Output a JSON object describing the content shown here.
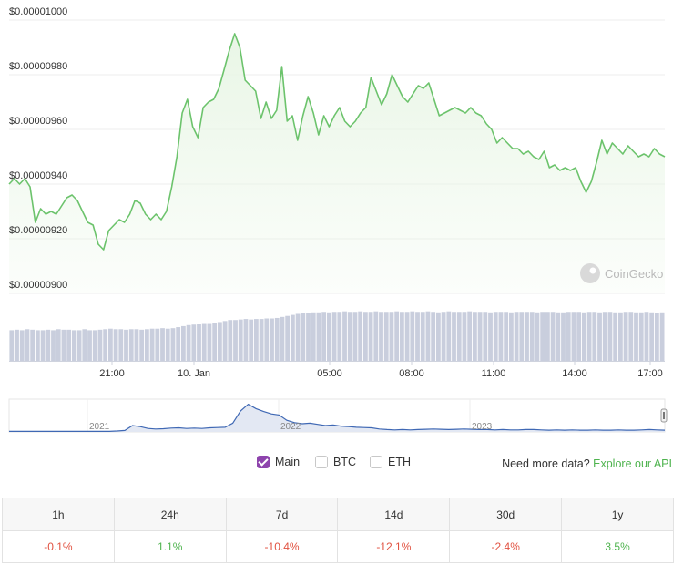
{
  "chart_data": {
    "type": "area",
    "price": {
      "y_ticks": [
        "$0.00001000",
        "$0.00000980",
        "$0.00000960",
        "$0.00000940",
        "$0.00000920",
        "$0.00000900"
      ],
      "ylim": [
        9e-06,
        1e-05
      ],
      "x_ticks": [
        "21:00",
        "10. Jan",
        "05:00",
        "08:00",
        "11:00",
        "14:00",
        "17:00"
      ],
      "values": [
        9.4e-06,
        9.42e-06,
        9.4e-06,
        9.42e-06,
        9.39e-06,
        9.26e-06,
        9.31e-06,
        9.29e-06,
        9.3e-06,
        9.29e-06,
        9.32e-06,
        9.35e-06,
        9.36e-06,
        9.34e-06,
        9.3e-06,
        9.26e-06,
        9.25e-06,
        9.18e-06,
        9.16e-06,
        9.23e-06,
        9.25e-06,
        9.27e-06,
        9.26e-06,
        9.29e-06,
        9.34e-06,
        9.33e-06,
        9.29e-06,
        9.27e-06,
        9.29e-06,
        9.27e-06,
        9.3e-06,
        9.39e-06,
        9.5e-06,
        9.66e-06,
        9.71e-06,
        9.61e-06,
        9.57e-06,
        9.68e-06,
        9.7e-06,
        9.71e-06,
        9.75e-06,
        9.82e-06,
        9.89e-06,
        9.95e-06,
        9.9e-06,
        9.78e-06,
        9.76e-06,
        9.74e-06,
        9.64e-06,
        9.7e-06,
        9.64e-06,
        9.67e-06,
        9.83e-06,
        9.63e-06,
        9.65e-06,
        9.56e-06,
        9.65e-06,
        9.72e-06,
        9.66e-06,
        9.58e-06,
        9.65e-06,
        9.61e-06,
        9.65e-06,
        9.68e-06,
        9.63e-06,
        9.61e-06,
        9.63e-06,
        9.66e-06,
        9.68e-06,
        9.79e-06,
        9.74e-06,
        9.69e-06,
        9.73e-06,
        9.8e-06,
        9.76e-06,
        9.72e-06,
        9.7e-06,
        9.73e-06,
        9.76e-06,
        9.75e-06,
        9.77e-06,
        9.71e-06,
        9.65e-06,
        9.66e-06,
        9.67e-06,
        9.68e-06,
        9.67e-06,
        9.66e-06,
        9.68e-06,
        9.66e-06,
        9.65e-06,
        9.62e-06,
        9.6e-06,
        9.55e-06,
        9.57e-06,
        9.55e-06,
        9.53e-06,
        9.53e-06,
        9.51e-06,
        9.52e-06,
        9.5e-06,
        9.49e-06,
        9.52e-06,
        9.46e-06,
        9.47e-06,
        9.45e-06,
        9.46e-06,
        9.45e-06,
        9.46e-06,
        9.41e-06,
        9.37e-06,
        9.41e-06,
        9.48e-06,
        9.56e-06,
        9.51e-06,
        9.55e-06,
        9.53e-06,
        9.51e-06,
        9.54e-06,
        9.52e-06,
        9.5e-06,
        9.51e-06,
        9.5e-06,
        9.53e-06,
        9.51e-06,
        9.5e-06
      ],
      "line_color": "#6cc36c",
      "area_color": "#e9f6e6"
    },
    "volume": {
      "values": [
        0.6,
        0.61,
        0.6,
        0.62,
        0.61,
        0.6,
        0.6,
        0.61,
        0.6,
        0.62,
        0.61,
        0.61,
        0.6,
        0.6,
        0.62,
        0.6,
        0.6,
        0.61,
        0.62,
        0.63,
        0.62,
        0.62,
        0.61,
        0.62,
        0.62,
        0.61,
        0.62,
        0.63,
        0.63,
        0.64,
        0.63,
        0.64,
        0.66,
        0.68,
        0.7,
        0.71,
        0.72,
        0.74,
        0.74,
        0.75,
        0.76,
        0.78,
        0.8,
        0.8,
        0.81,
        0.82,
        0.81,
        0.82,
        0.82,
        0.83,
        0.83,
        0.84,
        0.86,
        0.88,
        0.9,
        0.92,
        0.93,
        0.94,
        0.95,
        0.95,
        0.96,
        0.95,
        0.96,
        0.96,
        0.97,
        0.96,
        0.96,
        0.97,
        0.96,
        0.96,
        0.97,
        0.96,
        0.96,
        0.96,
        0.97,
        0.96,
        0.96,
        0.97,
        0.96,
        0.96,
        0.97,
        0.96,
        0.95,
        0.96,
        0.97,
        0.96,
        0.96,
        0.96,
        0.97,
        0.96,
        0.96,
        0.96,
        0.95,
        0.96,
        0.96,
        0.96,
        0.95,
        0.96,
        0.96,
        0.96,
        0.96,
        0.95,
        0.96,
        0.96,
        0.96,
        0.95,
        0.95,
        0.96,
        0.96,
        0.96,
        0.95,
        0.96,
        0.96,
        0.95,
        0.96,
        0.96,
        0.95,
        0.95,
        0.96,
        0.96,
        0.95,
        0.95,
        0.96,
        0.95,
        0.94,
        0.95
      ],
      "bar_color": "#c9cedd"
    },
    "navigator": {
      "x_ticks": [
        "2021",
        "2022",
        "2023"
      ],
      "values": [
        0.02,
        0.02,
        0.02,
        0.02,
        0.02,
        0.02,
        0.02,
        0.02,
        0.02,
        0.02,
        0.02,
        0.02,
        0.02,
        0.02,
        0.03,
        0.05,
        0.22,
        0.18,
        0.12,
        0.1,
        0.11,
        0.13,
        0.14,
        0.12,
        0.13,
        0.12,
        0.14,
        0.15,
        0.16,
        0.3,
        0.72,
        0.95,
        0.8,
        0.7,
        0.62,
        0.58,
        0.4,
        0.32,
        0.28,
        0.3,
        0.26,
        0.22,
        0.24,
        0.2,
        0.18,
        0.16,
        0.15,
        0.14,
        0.1,
        0.08,
        0.07,
        0.08,
        0.07,
        0.08,
        0.09,
        0.1,
        0.09,
        0.08,
        0.09,
        0.1,
        0.09,
        0.08,
        0.08,
        0.07,
        0.08,
        0.07,
        0.07,
        0.08,
        0.08,
        0.07,
        0.06,
        0.07,
        0.06,
        0.07,
        0.06,
        0.06,
        0.07,
        0.06,
        0.06,
        0.07,
        0.06,
        0.06,
        0.07,
        0.08,
        0.07,
        0.06
      ],
      "line_color": "#3f68b4",
      "fill_color": "#e3e8f3"
    },
    "watermark": "CoinGecko"
  },
  "controls": {
    "options": [
      {
        "label": "Main",
        "checked": true
      },
      {
        "label": "BTC",
        "checked": false
      },
      {
        "label": "ETH",
        "checked": false
      }
    ],
    "more_data_text": "Need more data?",
    "api_link": "Explore our API"
  },
  "performance": {
    "headers": [
      "1h",
      "24h",
      "7d",
      "14d",
      "30d",
      "1y"
    ],
    "values": [
      "-0.1%",
      "1.1%",
      "-10.4%",
      "-12.1%",
      "-2.4%",
      "3.5%"
    ],
    "signs": [
      "neg",
      "pos",
      "neg",
      "neg",
      "neg",
      "pos"
    ],
    "negative_color": "#e15241",
    "positive_color": "#4eb34e"
  }
}
